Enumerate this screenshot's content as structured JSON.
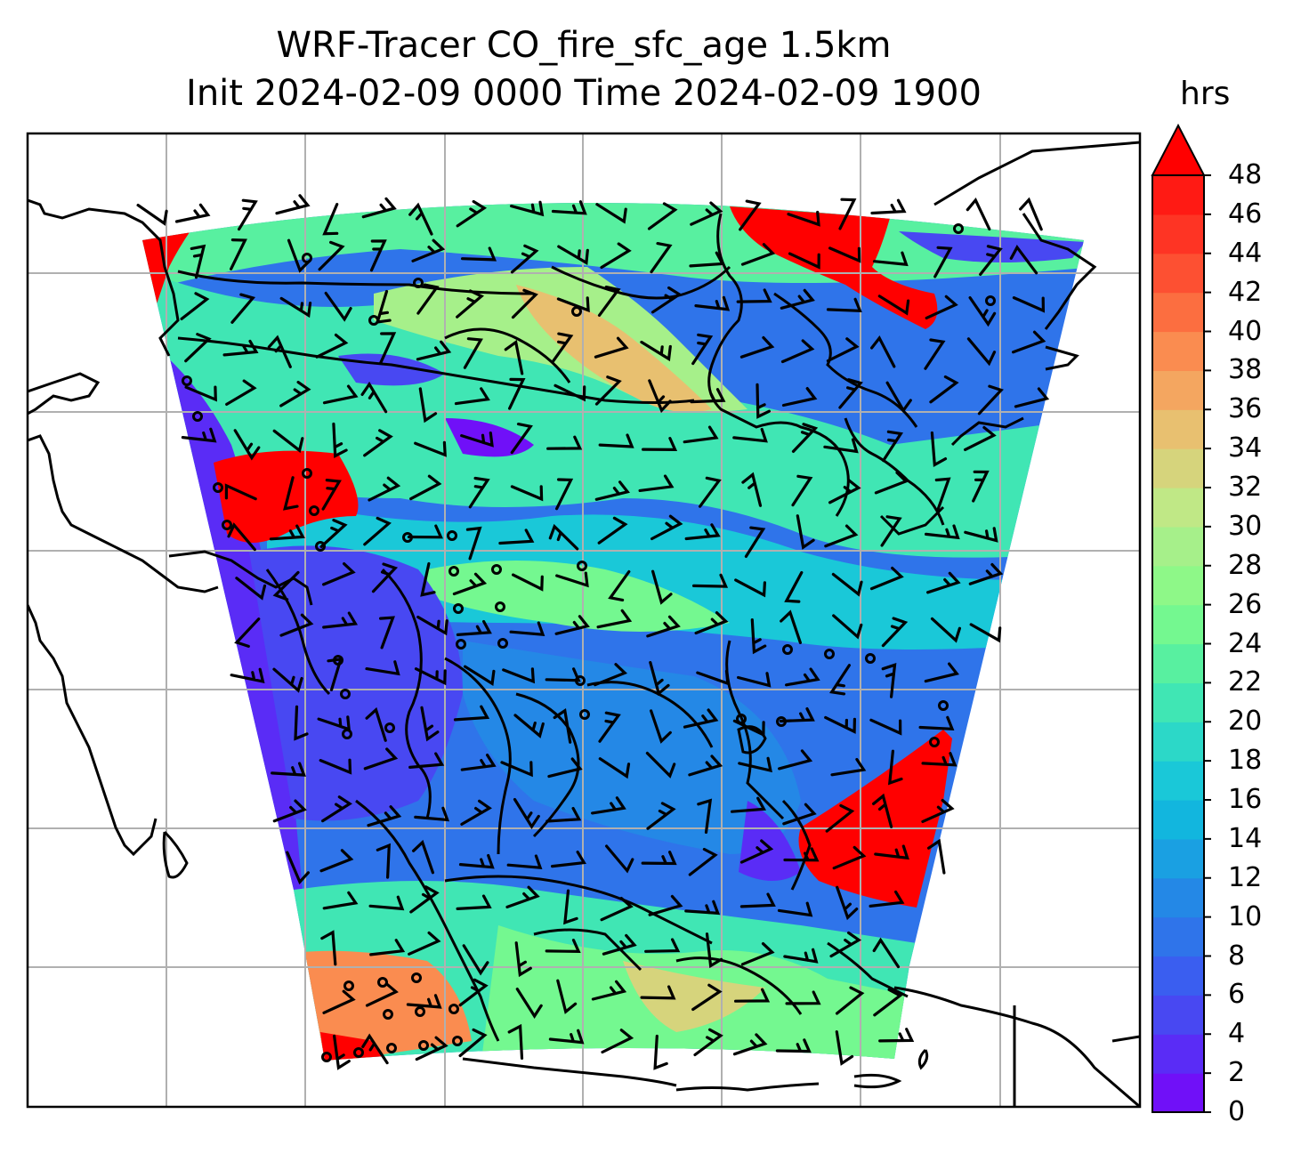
{
  "figure": {
    "title_line1": "WRF-Tracer CO_fire_sfc_age 1.5km",
    "title_line2": "Init 2024-02-09 0000 Time 2024-02-09 1900"
  },
  "colorbar": {
    "units": "hrs",
    "min": 0,
    "max": 48,
    "extend": "max",
    "tick_labels": [
      "0",
      "2",
      "4",
      "6",
      "8",
      "10",
      "12",
      "14",
      "16",
      "18",
      "20",
      "22",
      "24",
      "26",
      "28",
      "30",
      "32",
      "34",
      "36",
      "38",
      "40",
      "42",
      "44",
      "46",
      "48"
    ],
    "colors": [
      "#7010f8",
      "#5a2cf6",
      "#4848f2",
      "#3a5ef0",
      "#2f74ea",
      "#2488e6",
      "#1aa0e2",
      "#12b6de",
      "#1ac8d8",
      "#2cd8c8",
      "#40e6b4",
      "#58f0a0",
      "#74f890",
      "#8ef888",
      "#a6f08a",
      "#c0e886",
      "#d6d47c",
      "#e8c070",
      "#f4a660",
      "#fa8c50",
      "#fc6e40",
      "#fd5032",
      "#fe3424",
      "#ff1a14",
      "#ff0000"
    ]
  },
  "map": {
    "gridlines": true,
    "field_notes": "tracer age field over SE Asia / maritime continent with wind barbs",
    "regions": [
      {
        "name": "nw-red",
        "color": "#ff0000"
      },
      {
        "name": "ne-red",
        "color": "#ff0000"
      },
      {
        "name": "se-red",
        "color": "#ff0000"
      },
      {
        "name": "sw-orange",
        "color": "#fa8c50"
      }
    ]
  }
}
